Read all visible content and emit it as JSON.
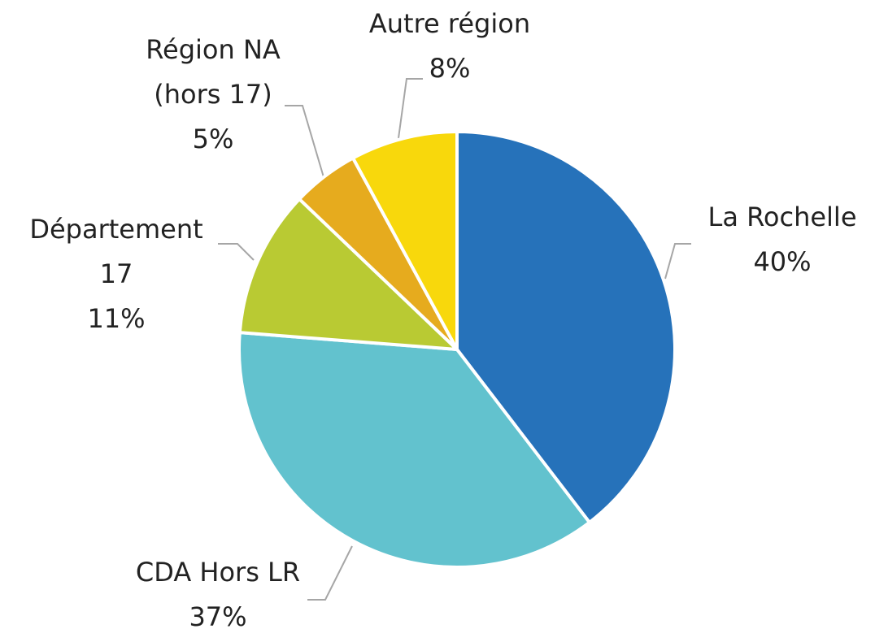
{
  "chart_data": {
    "type": "pie",
    "categories": [
      "La Rochelle",
      "CDA Hors LR",
      "Département 17",
      "Région NA (hors 17)",
      "Autre région"
    ],
    "values": [
      40,
      37,
      11,
      5,
      8
    ],
    "value_labels": [
      "40%",
      "37%",
      "11%",
      "5%",
      "8%"
    ],
    "colors": [
      "#2672ba",
      "#62c2ce",
      "#b9ca33",
      "#e6ab1e",
      "#f8d80c"
    ]
  }
}
